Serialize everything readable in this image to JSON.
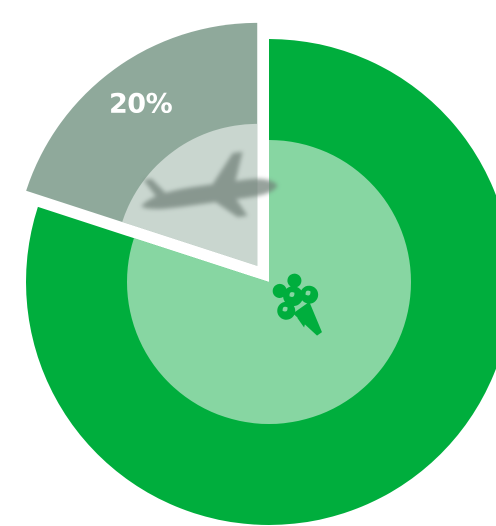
{
  "chart_data": {
    "type": "pie",
    "title": "",
    "slices": [
      {
        "value": 20,
        "label": "20%",
        "color": "#8fa99b",
        "inner_color": "#c9d6cf",
        "icon": "airplane-icon",
        "exploded": true
      },
      {
        "value": 80,
        "label": "",
        "color": "#00ae3d",
        "inner_color": "#87d6a2",
        "icon": "bouquet-icon",
        "exploded": false
      }
    ],
    "start_angle_deg": -72,
    "direction": "clockwise"
  }
}
